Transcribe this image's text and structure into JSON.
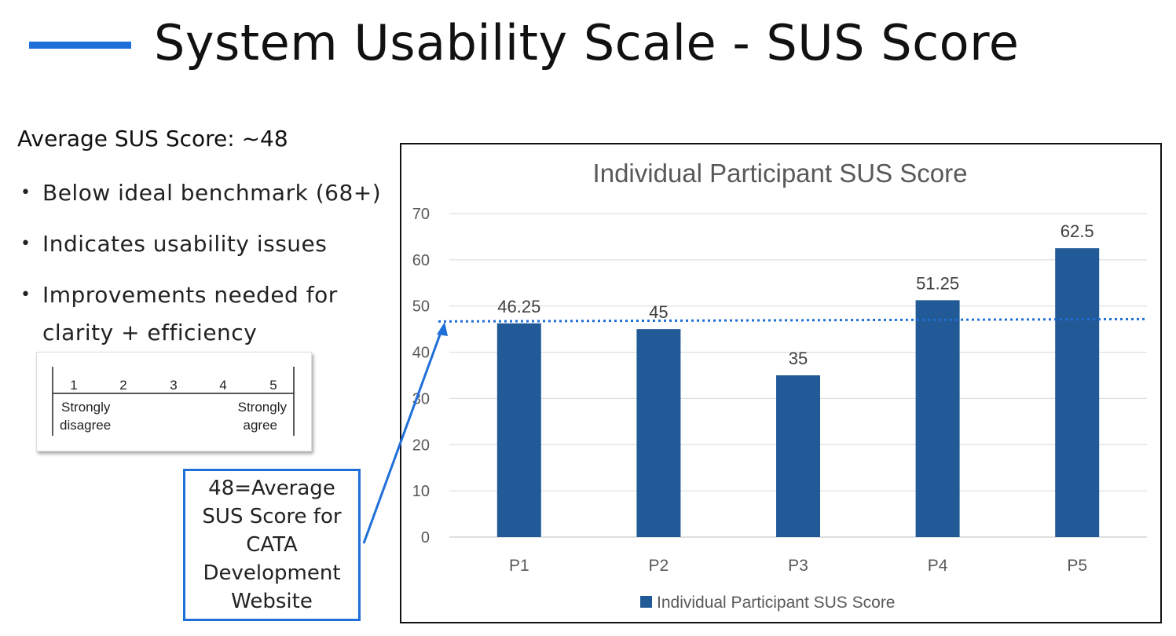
{
  "slide": {
    "title": "System Usability Scale - SUS Score",
    "average_heading": "Average SUS Score: ~48",
    "bullets": [
      "Below ideal benchmark (68+)",
      "Indicates usability issues",
      "Improvements needed for clarity + efficiency"
    ],
    "accent_color": "#1f6fd8"
  },
  "scale": {
    "points": [
      "1",
      "2",
      "3",
      "4",
      "5"
    ],
    "low_label_line1": "Strongly",
    "low_label_line2": "disagree",
    "high_label_line1": "Strongly",
    "high_label_line2": "agree"
  },
  "callout": {
    "text": "48=Average SUS Score for CATA Development Website"
  },
  "chart_data": {
    "type": "bar",
    "title": "Individual Participant SUS Score",
    "categories": [
      "P1",
      "P2",
      "P3",
      "P4",
      "P5"
    ],
    "series": [
      {
        "name": "Individual Participant SUS Score",
        "values": [
          46.25,
          45,
          35,
          51.25,
          62.5
        ],
        "color": "#225a98"
      }
    ],
    "data_labels": [
      "46.25",
      "45",
      "35",
      "51.25",
      "62.5"
    ],
    "ylim": [
      0,
      70
    ],
    "yticks": [
      0,
      10,
      20,
      30,
      40,
      50,
      60,
      70
    ],
    "grid": true,
    "legend": "bottom",
    "reference_line": {
      "value": 47,
      "style": "dotted",
      "color": "#1f6fd8"
    }
  }
}
